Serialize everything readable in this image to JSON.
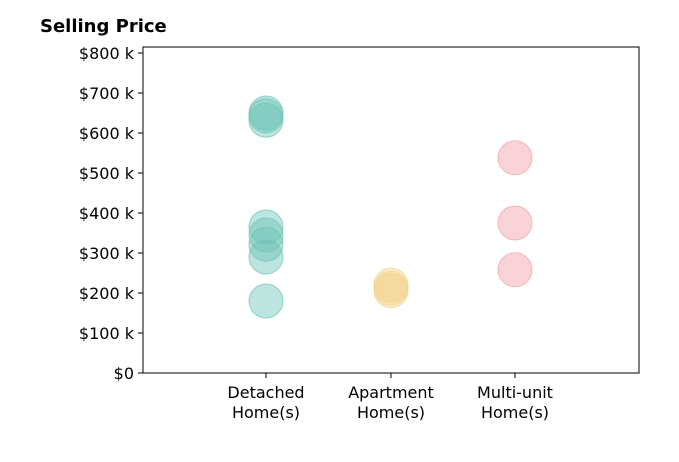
{
  "chart_data": {
    "type": "scatter",
    "title": "Selling Price",
    "xlabel": "",
    "ylabel": "",
    "categories": [
      [
        "Detached",
        "Home(s)"
      ],
      [
        "Apartment",
        "Home(s)"
      ],
      [
        "Multi-unit",
        "Home(s)"
      ]
    ],
    "yticks": [
      {
        "value": 0,
        "label": "$0"
      },
      {
        "value": 100000,
        "label": "$100 k"
      },
      {
        "value": 200000,
        "label": "$200 k"
      },
      {
        "value": 300000,
        "label": "$300 k"
      },
      {
        "value": 400000,
        "label": "$400 k"
      },
      {
        "value": 500000,
        "label": "$500 k"
      },
      {
        "value": 600000,
        "label": "$600 k"
      },
      {
        "value": 700000,
        "label": "$700 k"
      },
      {
        "value": 800000,
        "label": "$800 k"
      }
    ],
    "ylim": [
      0,
      815000
    ],
    "grid": false,
    "series": [
      {
        "category": 0,
        "color": "#6cc3b5",
        "values": [
          650000,
          643000,
          632000,
          365000,
          345000,
          322000,
          290000,
          180000
        ]
      },
      {
        "category": 1,
        "color": "#f2d38b",
        "values": [
          220000,
          212000,
          206000
        ]
      },
      {
        "category": 2,
        "color": "#f29ea8",
        "values": [
          538000,
          375000,
          258000
        ]
      }
    ]
  }
}
